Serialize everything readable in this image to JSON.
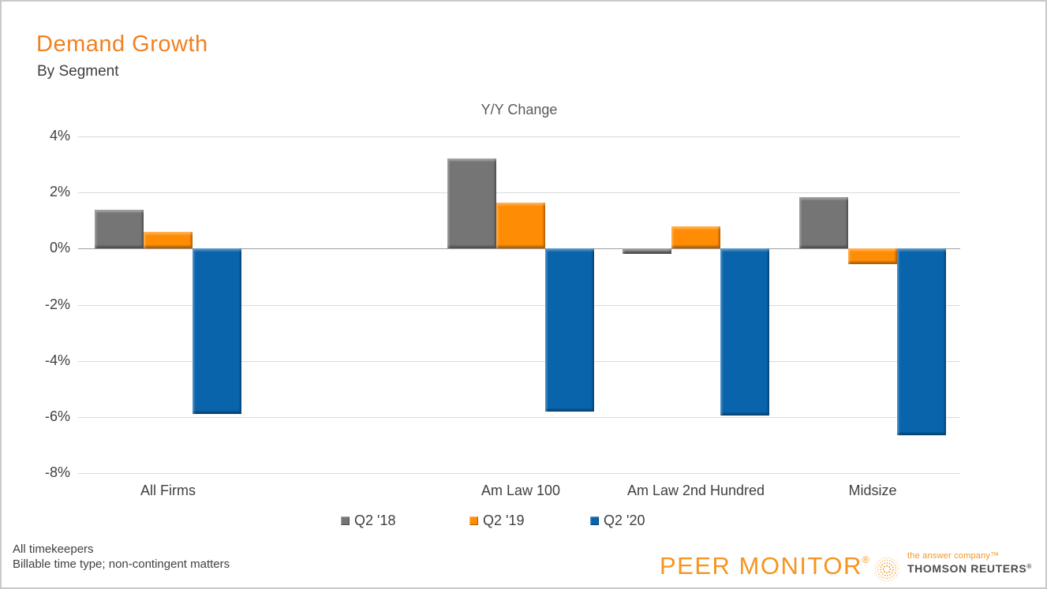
{
  "header": {
    "title": "Demand Growth",
    "subtitle": "By Segment",
    "title_color": "#f08122"
  },
  "chart_data": {
    "type": "bar",
    "title": "Y/Y Change",
    "categories": [
      "All Firms",
      "Am Law 100",
      "Am Law 2nd Hundred",
      "Midsize"
    ],
    "series": [
      {
        "name": "Q2 '18",
        "color": "#757575",
        "values": [
          1.4,
          3.2,
          -0.2,
          1.85
        ]
      },
      {
        "name": "Q2 '19",
        "color": "#ff8c05",
        "values": [
          0.6,
          1.65,
          0.8,
          -0.55
        ]
      },
      {
        "name": "Q2 '20",
        "color": "#0a64ab",
        "values": [
          -5.9,
          -5.8,
          -5.95,
          -6.65
        ]
      }
    ],
    "y_ticks": [
      4,
      2,
      0,
      -2,
      -4,
      -6,
      -8
    ],
    "y_tick_suffix": "%",
    "ylim": [
      -8,
      4
    ],
    "grid": true,
    "gridline_color": "#d9d9d9",
    "zero_line_color": "#9e9e9e",
    "legend_position": "bottom"
  },
  "footnotes": {
    "line1": "All timekeepers",
    "line2": "Billable time type; non-contingent matters"
  },
  "branding": {
    "peer_monitor": "PEER MONITOR",
    "peer_monitor_reg": "®",
    "tagline": "the answer company™",
    "thomson_reuters": "THOMSON REUTERS",
    "thomson_reuters_reg": "®",
    "logo_orange": "#f7941e"
  }
}
